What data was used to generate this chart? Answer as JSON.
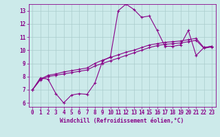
{
  "xlabel": "Windchill (Refroidissement éolien,°C)",
  "xlim": [
    -0.5,
    23.5
  ],
  "ylim": [
    5.7,
    13.5
  ],
  "xticks": [
    0,
    1,
    2,
    3,
    4,
    5,
    6,
    7,
    8,
    9,
    10,
    11,
    12,
    13,
    14,
    15,
    16,
    17,
    18,
    19,
    20,
    21,
    22,
    23
  ],
  "yticks": [
    6,
    7,
    8,
    9,
    10,
    11,
    12,
    13
  ],
  "bg_color": "#cceaea",
  "line_color": "#880088",
  "grid_color": "#aacccc",
  "line1_x": [
    0,
    1,
    2,
    3,
    4,
    5,
    6,
    7,
    8,
    9,
    10,
    11,
    12,
    13,
    14,
    15,
    16,
    17,
    18,
    19,
    20,
    21,
    22,
    23
  ],
  "line1_y": [
    7.0,
    7.9,
    7.8,
    6.7,
    6.0,
    6.6,
    6.7,
    6.65,
    7.5,
    9.2,
    9.5,
    13.0,
    13.5,
    13.1,
    12.5,
    12.6,
    11.5,
    10.3,
    10.3,
    10.4,
    11.5,
    9.6,
    10.2,
    10.3
  ],
  "line2_x": [
    0,
    1,
    2,
    3,
    4,
    5,
    6,
    7,
    8,
    9,
    10,
    11,
    12,
    13,
    14,
    15,
    16,
    17,
    18,
    19,
    20,
    21,
    22,
    23
  ],
  "line2_y": [
    7.0,
    7.8,
    8.1,
    8.2,
    8.35,
    8.45,
    8.55,
    8.65,
    9.0,
    9.25,
    9.45,
    9.65,
    9.85,
    10.0,
    10.2,
    10.4,
    10.5,
    10.6,
    10.65,
    10.7,
    10.8,
    10.9,
    10.2,
    10.3
  ],
  "line3_x": [
    0,
    1,
    2,
    3,
    4,
    5,
    6,
    7,
    8,
    9,
    10,
    11,
    12,
    13,
    14,
    15,
    16,
    17,
    18,
    19,
    20,
    21,
    22,
    23
  ],
  "line3_y": [
    7.0,
    7.75,
    8.0,
    8.1,
    8.2,
    8.3,
    8.4,
    8.5,
    8.8,
    9.0,
    9.2,
    9.4,
    9.6,
    9.8,
    10.0,
    10.2,
    10.35,
    10.45,
    10.5,
    10.55,
    10.65,
    10.75,
    10.15,
    10.25
  ]
}
